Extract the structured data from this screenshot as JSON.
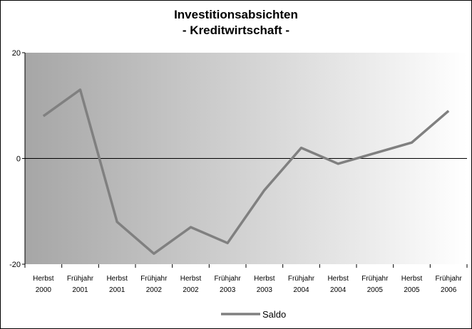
{
  "chart_data": {
    "type": "line",
    "title": "Investitionsabsichten",
    "subtitle": "- Kreditwirtschaft -",
    "categories": [
      "Herbst 2000",
      "Frühjahr 2001",
      "Herbst 2001",
      "Frühjahr 2002",
      "Herbst 2002",
      "Frühjahr 2003",
      "Herbst 2003",
      "Frühjahr 2004",
      "Herbst 2004",
      "Frühjahr 2005",
      "Herbst 2005",
      "Frühjahr 2006"
    ],
    "series": [
      {
        "name": "Saldo",
        "color": "#808080",
        "values": [
          8,
          13,
          -12,
          -18,
          -13,
          -16,
          -6,
          2,
          -1,
          1,
          3,
          9
        ]
      }
    ],
    "ylim": [
      -20,
      20
    ],
    "yticks": [
      -20,
      0,
      20
    ],
    "legend": "bottom"
  }
}
